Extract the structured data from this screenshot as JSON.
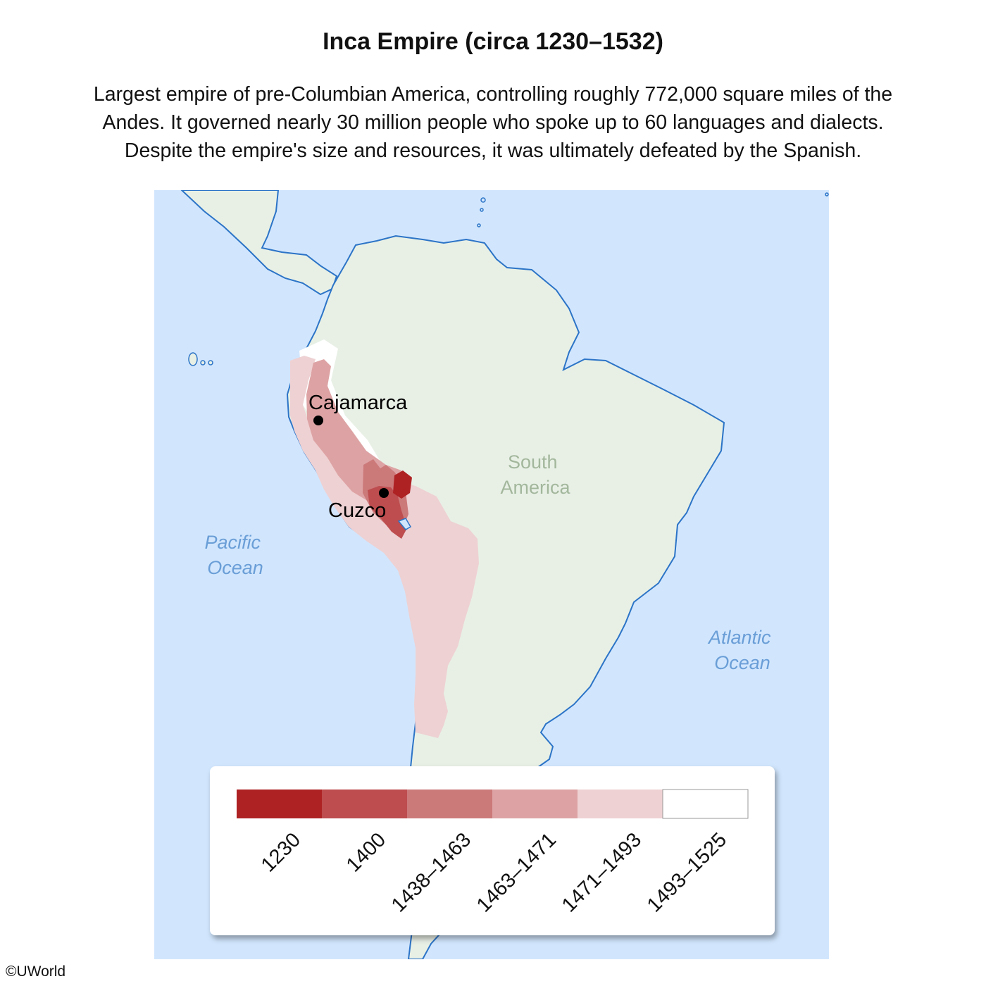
{
  "title": "Inca Empire (circa 1230–1532)",
  "description": [
    "Largest empire of pre-Columbian America, controlling roughly 772,000 square miles of the",
    "Andes. It governed nearly 30 million people who spoke up to 60 languages and dialects.",
    "Despite the empire's size and resources, it was ultimately defeated by the Spanish."
  ],
  "map": {
    "continent_label": [
      "South",
      "America"
    ],
    "ocean_labels": {
      "pacific": [
        "Pacific",
        "Ocean"
      ],
      "atlantic": [
        "Atlantic",
        "Ocean"
      ]
    },
    "cities": [
      {
        "name": "Cajamarca"
      },
      {
        "name": "Cuzco"
      }
    ],
    "colors": {
      "ocean": "#d1e6fd",
      "land": "#e8f0e6",
      "coast": "#2c74c7",
      "ocean_text": "#6a9ed7",
      "continent_text": "#a3b79c"
    }
  },
  "legend": {
    "items": [
      {
        "label": "1230",
        "color": "#ae2224"
      },
      {
        "label": "1400",
        "color": "#bd4d4f"
      },
      {
        "label": "1438–1463",
        "color": "#cc797a"
      },
      {
        "label": "1463–1471",
        "color": "#dda3a4"
      },
      {
        "label": "1471–1493",
        "color": "#eed1d3"
      },
      {
        "label": "1493–1525",
        "color": "#ffffff"
      }
    ]
  },
  "copyright": "©UWorld"
}
